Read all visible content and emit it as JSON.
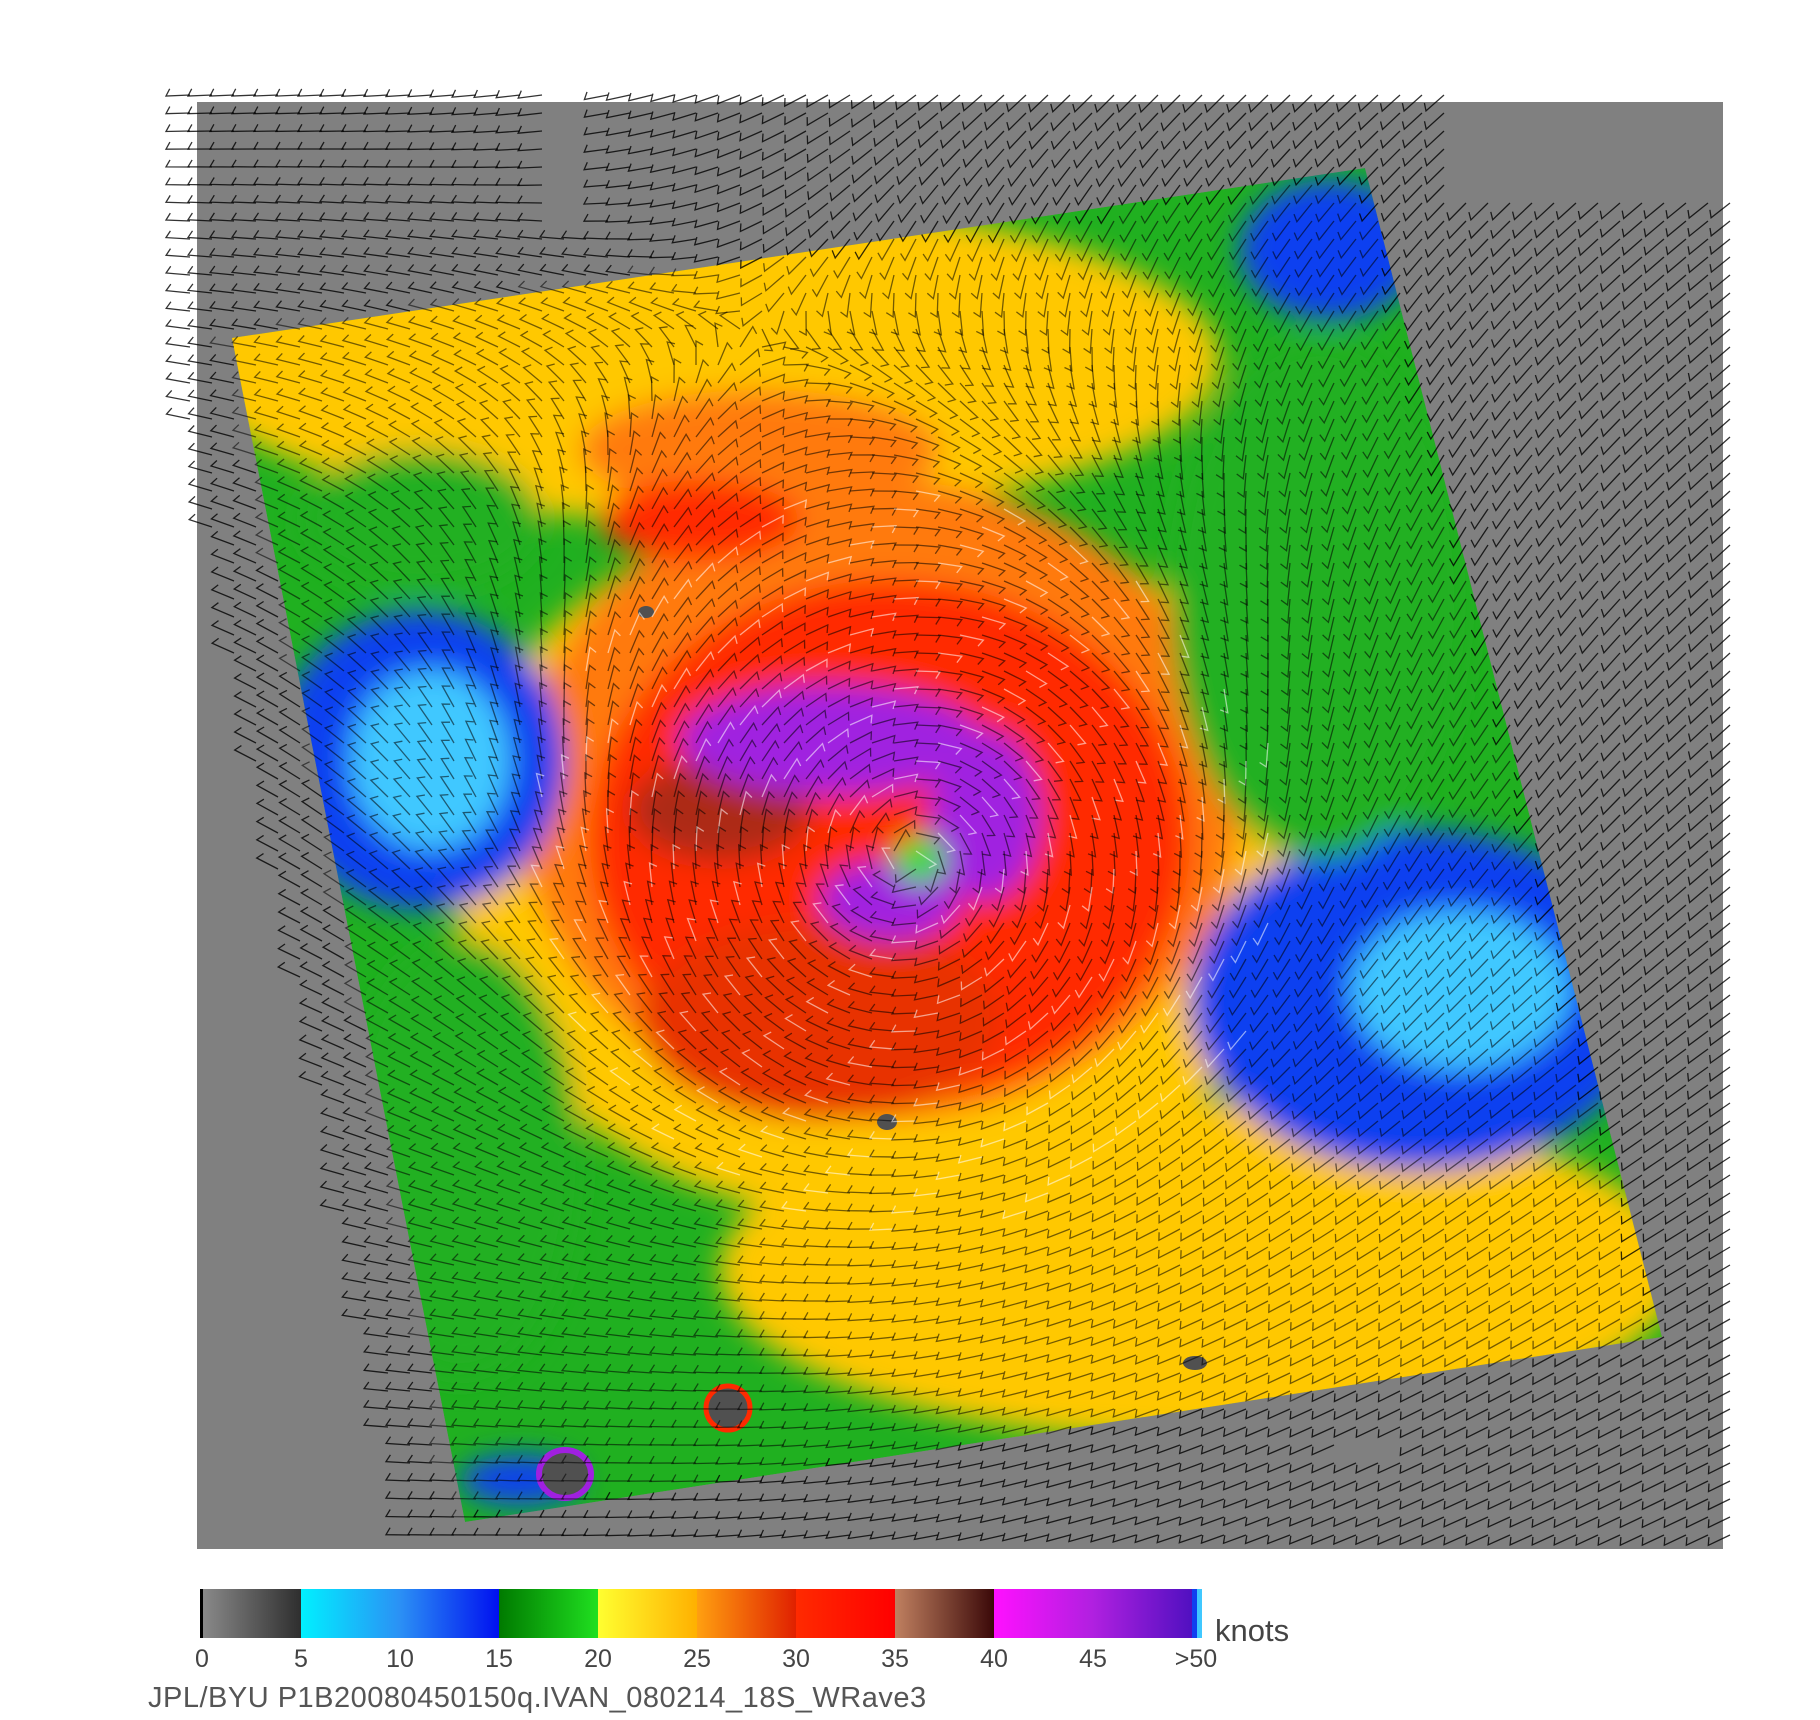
{
  "colorbar": {
    "unit": "knots",
    "ticks": [
      "0",
      "5",
      "10",
      "15",
      "20",
      "25",
      "30",
      "35",
      "40",
      "45",
      ">50"
    ],
    "bands": [
      {
        "from": 0,
        "to": 5,
        "start": "#8a8a8a",
        "end": "#2e2e2e"
      },
      {
        "from": 5,
        "to": 10,
        "start": "#00f0ff",
        "end": "#2b90f5"
      },
      {
        "from": 10,
        "to": 15,
        "start": "#2b90f5",
        "end": "#0010f0"
      },
      {
        "from": 15,
        "to": 20,
        "start": "#007a00",
        "end": "#20e020"
      },
      {
        "from": 20,
        "to": 25,
        "start": "#ffff30",
        "end": "#ffb000"
      },
      {
        "from": 25,
        "to": 30,
        "start": "#ffa010",
        "end": "#e02000"
      },
      {
        "from": 30,
        "to": 35,
        "start": "#ff2a00",
        "end": "#ff0000"
      },
      {
        "from": 35,
        "to": 40,
        "start": "#c08060",
        "end": "#3a0808"
      },
      {
        "from": 40,
        "to": 45,
        "start": "#ff10ff",
        "end": "#b020e0"
      },
      {
        "from": 45,
        "to": 50,
        "start": "#b020e0",
        "end": "#5010c0"
      }
    ]
  },
  "map": {
    "no_data_color": "#808080",
    "wind_field_colors": {
      "calm": "#3a3a3a",
      "light_cyan": "#40c8ff",
      "light_blue": "#1040f0",
      "moderate_green": "#20b020",
      "fresh_yellow": "#ffc800",
      "strong_orange": "#ff7a10",
      "gale_red": "#ff2a00",
      "storm_brown": "#8a2a1a",
      "hurricane_purple": "#a020e0"
    }
  },
  "footer": {
    "text": "JPL/BYU  P1B20080450150q.IVAN_080214_18S_WRave3"
  }
}
